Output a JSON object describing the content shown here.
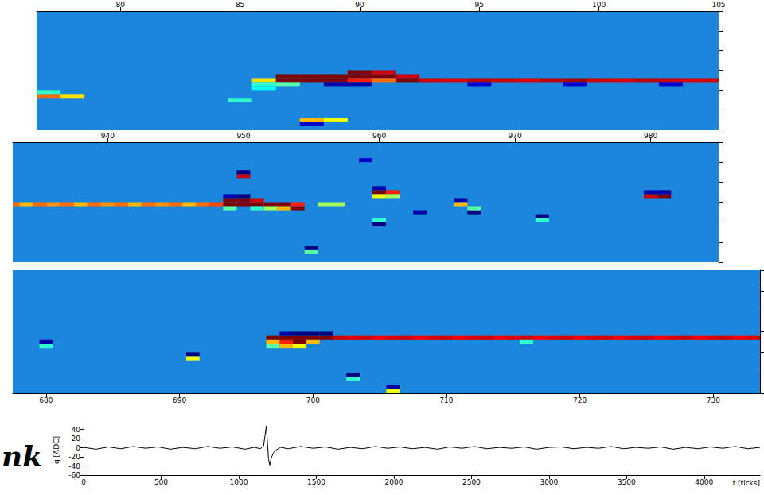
{
  "chart_data": [
    {
      "type": "heatmap",
      "tick_labels": "x",
      "grid": false,
      "xlim": [
        76.5,
        105
      ],
      "xticks": [
        80,
        85,
        90,
        95,
        100,
        105
      ],
      "ylim": [
        0,
        30
      ],
      "zlim": [
        -30,
        100
      ],
      "cells": [
        [
          77,
          8,
          70
        ],
        [
          77,
          9,
          25
        ],
        [
          78,
          8,
          55
        ],
        [
          85,
          7,
          25
        ],
        [
          86,
          12,
          55
        ],
        [
          86,
          11,
          25
        ],
        [
          86,
          10,
          20
        ],
        [
          87,
          12,
          100
        ],
        [
          87,
          13,
          100
        ],
        [
          87,
          11,
          30
        ],
        [
          88,
          12,
          100
        ],
        [
          88,
          13,
          100
        ],
        [
          88,
          2,
          60
        ],
        [
          88,
          1,
          -20
        ],
        [
          89,
          12,
          100
        ],
        [
          89,
          13,
          100
        ],
        [
          89,
          2,
          50
        ],
        [
          89,
          11,
          -25
        ],
        [
          90,
          13,
          100
        ],
        [
          90,
          14,
          100
        ],
        [
          90,
          12,
          80
        ],
        [
          90,
          11,
          -25
        ],
        [
          91,
          13,
          100
        ],
        [
          91,
          14,
          90
        ],
        [
          91,
          12,
          70
        ],
        [
          92,
          13,
          90
        ],
        [
          92,
          12,
          100
        ],
        [
          93,
          12,
          90
        ],
        [
          94,
          12,
          88
        ],
        [
          95,
          12,
          92
        ],
        [
          95,
          11,
          -20
        ],
        [
          96,
          12,
          90
        ],
        [
          97,
          12,
          88
        ],
        [
          98,
          12,
          92
        ],
        [
          99,
          12,
          95
        ],
        [
          99,
          11,
          -20
        ],
        [
          100,
          12,
          90
        ],
        [
          101,
          12,
          88
        ],
        [
          102,
          12,
          92
        ],
        [
          103,
          12,
          90
        ],
        [
          103,
          11,
          -20
        ],
        [
          104,
          12,
          88
        ],
        [
          105,
          12,
          90
        ]
      ]
    },
    {
      "type": "heatmap",
      "tick_labels": "x",
      "grid": false,
      "xlim": [
        933,
        985
      ],
      "xticks": [
        940,
        950,
        960,
        970,
        980
      ],
      "ylim": [
        0,
        30
      ],
      "zlim": [
        -30,
        100
      ],
      "cells": [
        [
          933,
          14,
          70
        ],
        [
          934,
          14,
          60
        ],
        [
          935,
          14,
          70
        ],
        [
          936,
          14,
          65
        ],
        [
          937,
          14,
          70
        ],
        [
          938,
          14,
          60
        ],
        [
          939,
          14,
          70
        ],
        [
          940,
          14,
          65
        ],
        [
          941,
          14,
          70
        ],
        [
          942,
          14,
          60
        ],
        [
          943,
          14,
          70
        ],
        [
          944,
          14,
          65
        ],
        [
          945,
          14,
          70
        ],
        [
          946,
          14,
          60
        ],
        [
          947,
          14,
          70
        ],
        [
          948,
          14,
          75
        ],
        [
          949,
          14,
          100
        ],
        [
          949,
          15,
          100
        ],
        [
          949,
          16,
          -25
        ],
        [
          949,
          13,
          30
        ],
        [
          950,
          14,
          100
        ],
        [
          950,
          15,
          100
        ],
        [
          950,
          16,
          -30
        ],
        [
          950,
          21,
          90
        ],
        [
          950,
          22,
          -30
        ],
        [
          951,
          14,
          100
        ],
        [
          951,
          15,
          90
        ],
        [
          951,
          13,
          25
        ],
        [
          952,
          14,
          100
        ],
        [
          952,
          13,
          40
        ],
        [
          953,
          14,
          100
        ],
        [
          953,
          13,
          60
        ],
        [
          954,
          13,
          100
        ],
        [
          954,
          14,
          80
        ],
        [
          955,
          3,
          -30
        ],
        [
          955,
          2,
          30
        ],
        [
          956,
          14,
          40
        ],
        [
          957,
          14,
          40
        ],
        [
          959,
          25,
          -20
        ],
        [
          960,
          17,
          100
        ],
        [
          960,
          16,
          50
        ],
        [
          960,
          18,
          -25
        ],
        [
          960,
          9,
          -30
        ],
        [
          960,
          10,
          25
        ],
        [
          961,
          17,
          80
        ],
        [
          961,
          16,
          40
        ],
        [
          963,
          12,
          -25
        ],
        [
          966,
          15,
          -25
        ],
        [
          966,
          14,
          60
        ],
        [
          967,
          12,
          -30
        ],
        [
          967,
          13,
          30
        ],
        [
          972,
          11,
          -30
        ],
        [
          972,
          10,
          25
        ],
        [
          980,
          16,
          90
        ],
        [
          980,
          17,
          -25
        ],
        [
          981,
          16,
          100
        ],
        [
          981,
          17,
          -25
        ]
      ]
    },
    {
      "type": "heatmap",
      "tick_labels": "x",
      "grid": false,
      "xlim": [
        677.5,
        733.5
      ],
      "xticks": [
        680,
        690,
        700,
        710,
        720,
        730
      ],
      "ylim": [
        0,
        30
      ],
      "zlim": [
        -30,
        100
      ],
      "cells": [
        [
          680,
          12,
          -25
        ],
        [
          680,
          11,
          25
        ],
        [
          691,
          9,
          -30
        ],
        [
          691,
          8,
          50
        ],
        [
          697,
          13,
          100
        ],
        [
          697,
          12,
          60
        ],
        [
          697,
          11,
          30
        ],
        [
          698,
          13,
          100
        ],
        [
          698,
          12,
          80
        ],
        [
          698,
          11,
          60
        ],
        [
          698,
          14,
          -25
        ],
        [
          699,
          13,
          100
        ],
        [
          699,
          12,
          100
        ],
        [
          699,
          11,
          50
        ],
        [
          699,
          14,
          -30
        ],
        [
          700,
          13,
          100
        ],
        [
          700,
          14,
          -30
        ],
        [
          700,
          12,
          60
        ],
        [
          701,
          13,
          100
        ],
        [
          701,
          14,
          -30
        ],
        [
          702,
          13,
          90
        ],
        [
          703,
          13,
          88
        ],
        [
          703,
          4,
          -30
        ],
        [
          703,
          3,
          25
        ],
        [
          704,
          13,
          90
        ],
        [
          705,
          13,
          85
        ],
        [
          706,
          13,
          88
        ],
        [
          706,
          1,
          -25
        ],
        [
          706,
          0,
          50
        ],
        [
          707,
          13,
          90
        ],
        [
          708,
          13,
          85
        ],
        [
          709,
          13,
          88
        ],
        [
          710,
          13,
          90
        ],
        [
          711,
          13,
          85
        ],
        [
          712,
          13,
          88
        ],
        [
          713,
          13,
          90
        ],
        [
          714,
          13,
          85
        ],
        [
          715,
          13,
          88
        ],
        [
          716,
          13,
          90
        ],
        [
          716,
          12,
          25
        ],
        [
          717,
          13,
          85
        ],
        [
          718,
          13,
          88
        ],
        [
          719,
          13,
          90
        ],
        [
          720,
          13,
          85
        ],
        [
          721,
          13,
          88
        ],
        [
          722,
          13,
          90
        ],
        [
          723,
          13,
          85
        ],
        [
          724,
          13,
          88
        ],
        [
          725,
          13,
          90
        ],
        [
          726,
          13,
          85
        ],
        [
          727,
          13,
          88
        ],
        [
          728,
          13,
          90
        ],
        [
          729,
          13,
          85
        ],
        [
          730,
          13,
          88
        ],
        [
          731,
          13,
          90
        ],
        [
          732,
          13,
          85
        ],
        [
          733,
          13,
          88
        ]
      ]
    },
    {
      "type": "line",
      "grid": false,
      "color": "#000000",
      "xlabel": "t [ticks]",
      "ylabel": "q [ADC]",
      "annotation": "nk",
      "xlim": [
        0,
        4360
      ],
      "xticks": [
        0,
        500,
        1000,
        1500,
        2000,
        2500,
        3000,
        3500,
        4000
      ],
      "ylim": [
        -60,
        50
      ],
      "yticks": [
        -60,
        -40,
        -20,
        0,
        20,
        40
      ],
      "x": [
        0,
        80,
        160,
        240,
        320,
        400,
        480,
        560,
        640,
        720,
        800,
        880,
        960,
        1040,
        1100,
        1140,
        1160,
        1170,
        1178,
        1185,
        1192,
        1200,
        1210,
        1225,
        1245,
        1270,
        1320,
        1400,
        1480,
        1560,
        1640,
        1720,
        1800,
        1880,
        1960,
        2040,
        2120,
        2200,
        2280,
        2360,
        2440,
        2520,
        2600,
        2680,
        2760,
        2840,
        2920,
        3000,
        3080,
        3160,
        3240,
        3320,
        3400,
        3480,
        3560,
        3640,
        3720,
        3800,
        3880,
        3960,
        4040,
        4120,
        4200,
        4280,
        4360
      ],
      "values": [
        1,
        -3,
        2,
        -2,
        3,
        -1,
        2,
        -3,
        1,
        -2,
        3,
        -1,
        2,
        -3,
        1,
        -2,
        4,
        28,
        48,
        12,
        -24,
        -38,
        -22,
        -10,
        -4,
        1,
        -2,
        3,
        -1,
        2,
        -3,
        1,
        -2,
        3,
        -1,
        2,
        -2,
        1,
        -3,
        2,
        -1,
        3,
        -2,
        1,
        -1,
        2,
        -3,
        1,
        2,
        -2,
        1,
        -1,
        3,
        -2,
        1,
        -1,
        2,
        -3,
        1,
        -2,
        2,
        -1,
        3,
        -2,
        1
      ]
    }
  ]
}
